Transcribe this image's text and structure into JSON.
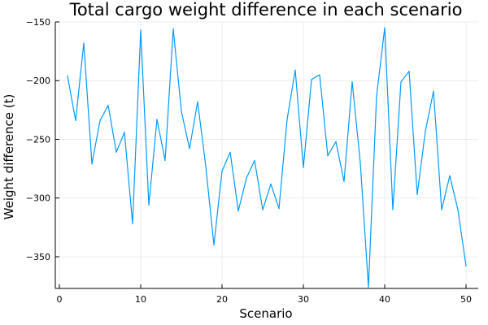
{
  "chart_data": {
    "type": "line",
    "title": "Total cargo weight difference in each scenario",
    "xlabel": "Scenario",
    "ylabel": "Weight difference (t)",
    "xlim": [
      -0.5,
      51.5
    ],
    "ylim": [
      -377,
      -150
    ],
    "xticks": [
      0,
      10,
      20,
      30,
      40,
      50
    ],
    "yticks": [
      -150,
      -200,
      -250,
      -300,
      -350
    ],
    "xtick_labels": [
      "0",
      "10",
      "20",
      "30",
      "40",
      "50"
    ],
    "ytick_labels": [
      "−150",
      "−200",
      "−250",
      "−300",
      "−350"
    ],
    "grid": true,
    "legend": "none",
    "series_color": "#009AFA",
    "x": [
      1,
      2,
      3,
      4,
      5,
      6,
      7,
      8,
      9,
      10,
      11,
      12,
      13,
      14,
      15,
      16,
      17,
      18,
      19,
      20,
      21,
      22,
      23,
      24,
      25,
      26,
      27,
      28,
      29,
      30,
      31,
      32,
      33,
      34,
      35,
      36,
      37,
      38,
      39,
      40,
      41,
      42,
      43,
      44,
      45,
      46,
      47,
      48,
      49,
      50
    ],
    "y": [
      -196,
      -234,
      -168,
      -271,
      -234,
      -221,
      -261,
      -244,
      -322,
      -157,
      -306,
      -233,
      -268,
      -156,
      -226,
      -258,
      -218,
      -273,
      -340,
      -277,
      -261,
      -311,
      -283,
      -268,
      -310,
      -288,
      -309,
      -233,
      -191,
      -274,
      -199,
      -195,
      -264,
      -252,
      -286,
      -201,
      -270,
      -376,
      -213,
      -155,
      -310,
      -201,
      -192,
      -297,
      -243,
      -209,
      -310,
      -281,
      -310,
      -358
    ]
  }
}
